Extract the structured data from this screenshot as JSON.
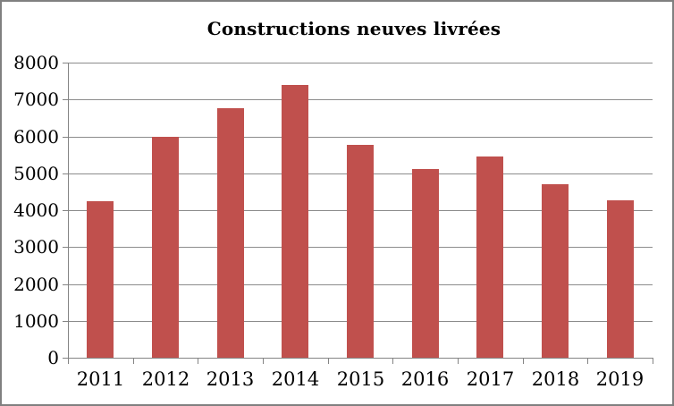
{
  "chart": {
    "title": "Constructions neuves livrées"
  },
  "chart_data": {
    "type": "bar",
    "title": "Constructions neuves livrées",
    "categories": [
      "2011",
      "2012",
      "2013",
      "2014",
      "2015",
      "2016",
      "2017",
      "2018",
      "2019"
    ],
    "values": [
      4240,
      6000,
      6775,
      7400,
      5770,
      5110,
      5450,
      4700,
      4270
    ],
    "xlabel": "",
    "ylabel": "",
    "ylim": [
      0,
      8000
    ],
    "ytick_step": 1000,
    "ytick_labels": [
      "0",
      "1000",
      "2000",
      "3000",
      "4000",
      "5000",
      "6000",
      "7000",
      "8000"
    ],
    "grid": true,
    "legend_position": "none",
    "colors": {
      "bar": "#c0504d",
      "axis_line": "#848484",
      "gridline": "#8c8c8c",
      "text": "#000000",
      "frame_border": "#808080",
      "background": "#ffffff"
    }
  }
}
